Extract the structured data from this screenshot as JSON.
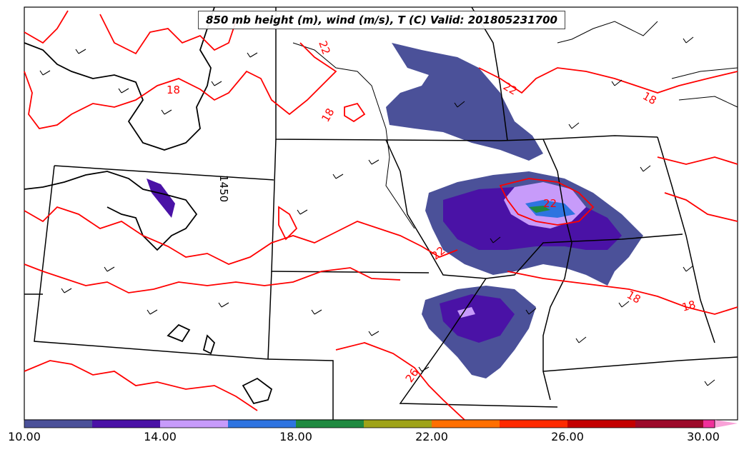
{
  "title": "850 mb height (m), wind (m/s), T (C) Valid: 201805231700",
  "contour_labels": {
    "temp": [
      "18",
      "18",
      "22",
      "22",
      "18",
      "18",
      "18",
      "22",
      "26",
      "22"
    ],
    "height": "1450"
  },
  "colorbar": {
    "ticks": [
      "10.00",
      "14.00",
      "18.00",
      "22.00",
      "26.00",
      "30.00"
    ],
    "colors": [
      "#4b5199",
      "#4a12a6",
      "#c79bfa",
      "#2e74e0",
      "#1f8a40",
      "#9fa318",
      "#ff6f00",
      "#ff2a00",
      "#c40000",
      "#9c0a2a",
      "#f0309b",
      "#f9a2d8"
    ]
  },
  "colors": {
    "temp_contour": "#ff0000",
    "height_contour": "#000000",
    "boundaries": "#000000"
  }
}
